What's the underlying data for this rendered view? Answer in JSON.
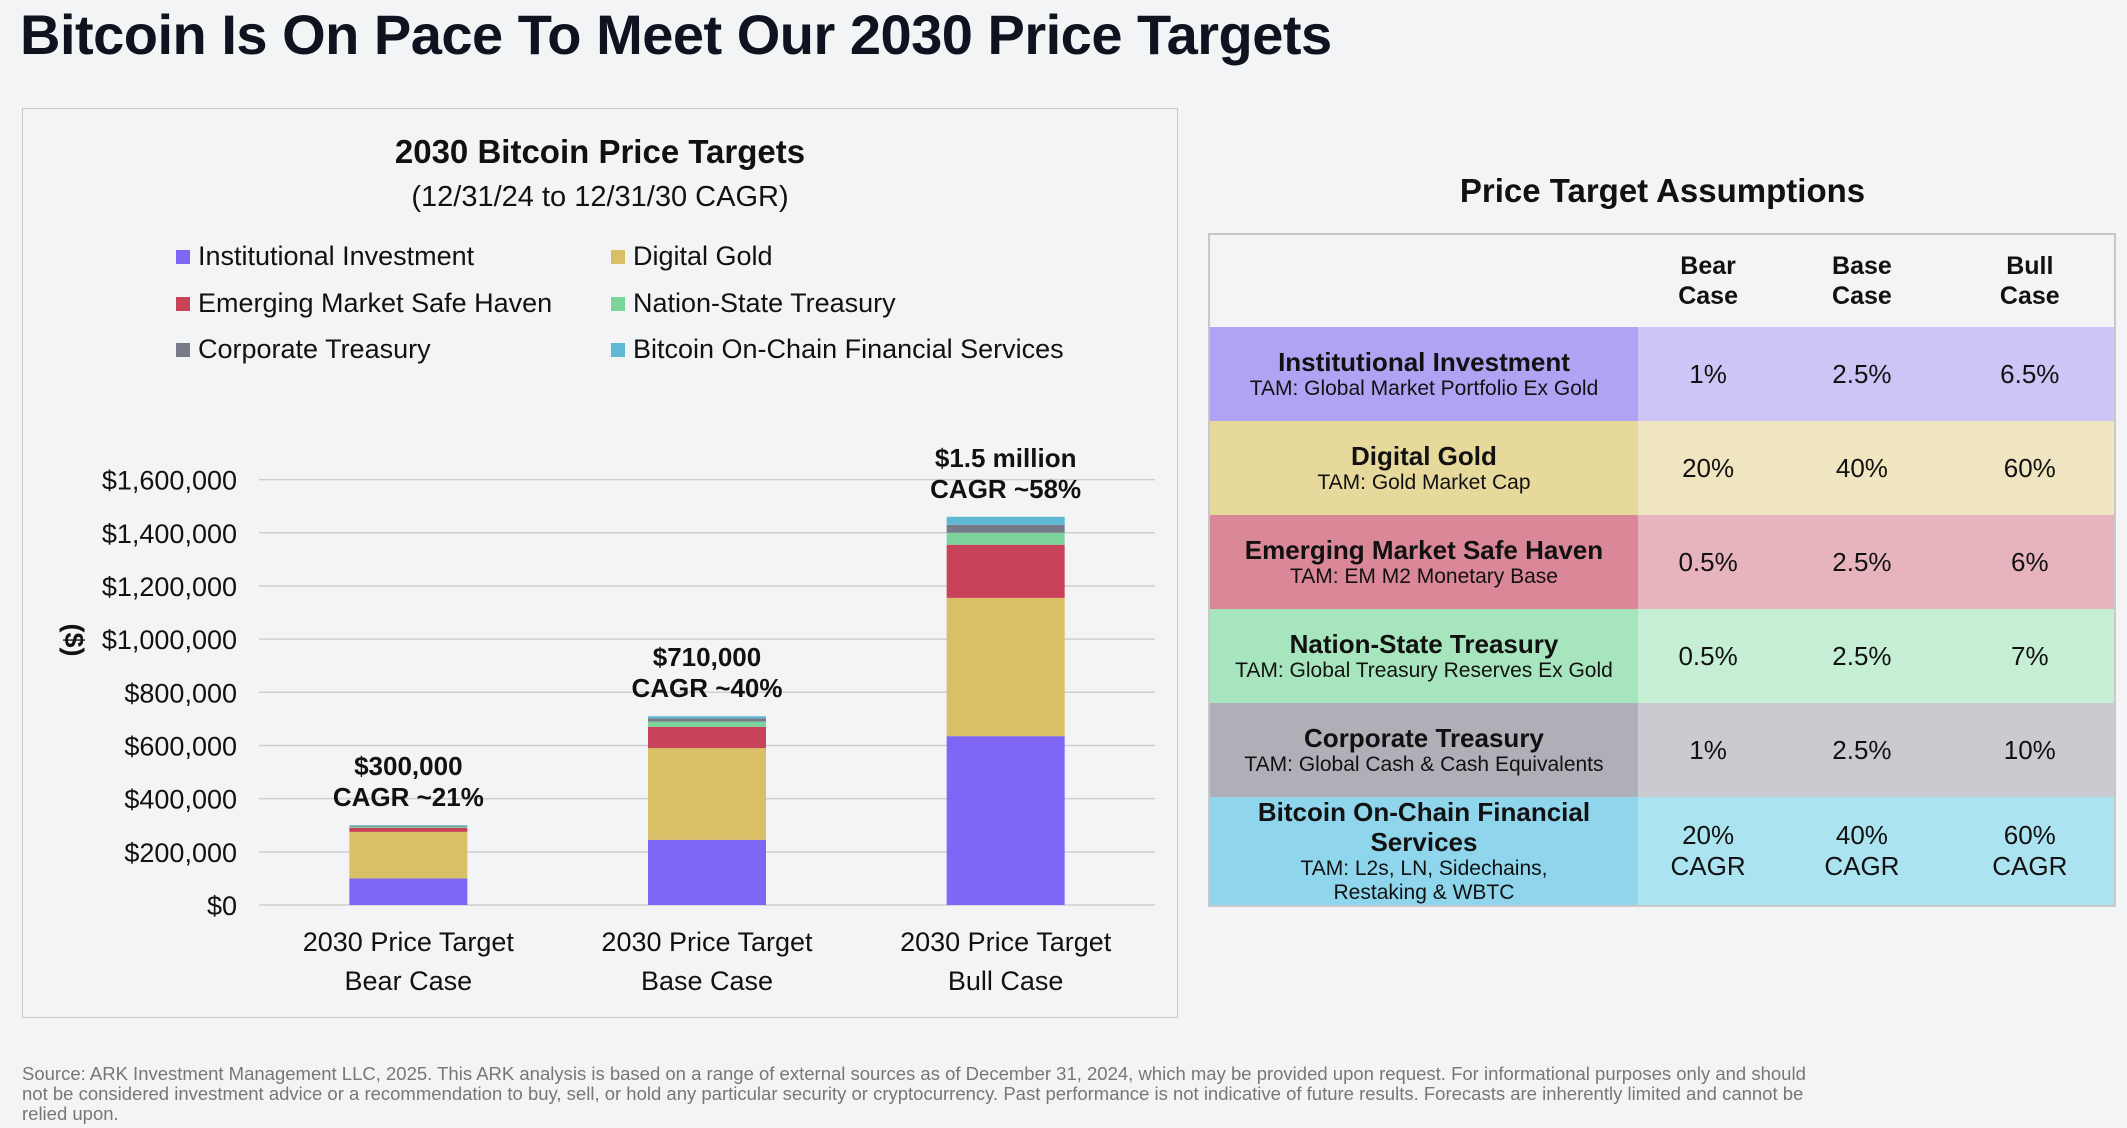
{
  "page_title": "Bitcoin Is On Pace To Meet Our 2030 Price Targets",
  "chart_data": {
    "type": "bar",
    "stacked": true,
    "title": "2030 Bitcoin Price Targets",
    "subtitle": "(12/31/24 to 12/31/30 CAGR)",
    "ylabel": "($)",
    "ylim": [
      0,
      1700000
    ],
    "yticks": [
      0,
      200000,
      400000,
      600000,
      800000,
      1000000,
      1200000,
      1400000,
      1600000
    ],
    "ytick_labels": [
      "$0",
      "$200,000",
      "$400,000",
      "$600,000",
      "$800,000",
      "$1,000,000",
      "$1,200,000",
      "$1,400,000",
      "$1,600,000"
    ],
    "grid": true,
    "legend_position": "top",
    "categories": [
      {
        "line1": "2030 Price Target",
        "line2": "Bear Case"
      },
      {
        "line1": "2030 Price Target",
        "line2": "Base Case"
      },
      {
        "line1": "2030 Price Target",
        "line2": "Bull Case"
      }
    ],
    "series": [
      {
        "name": "Institutional Investment",
        "color": "#8066f5",
        "values": [
          100000,
          245000,
          635000
        ]
      },
      {
        "name": "Digital Gold",
        "color": "#d9bf65",
        "values": [
          175000,
          345000,
          520000
        ]
      },
      {
        "name": "Emerging Market Safe Haven",
        "color": "#c8435a",
        "values": [
          15000,
          80000,
          200000
        ]
      },
      {
        "name": "Nation-State Treasury",
        "color": "#7cd39c",
        "values": [
          4000,
          20000,
          45000
        ]
      },
      {
        "name": "Corporate Treasury",
        "color": "#777b89",
        "values": [
          3000,
          12000,
          30000
        ]
      },
      {
        "name": "Bitcoin On-Chain Financial Services",
        "color": "#5fb9d5",
        "values": [
          3000,
          8000,
          30000
        ]
      }
    ],
    "annotations": [
      {
        "line1": "$300,000",
        "line2": "CAGR ~21%"
      },
      {
        "line1": "$710,000",
        "line2": "CAGR ~40%"
      },
      {
        "line1": "$1.5 million",
        "line2": "CAGR ~58%"
      }
    ]
  },
  "assumptions": {
    "title": "Price Target Assumptions",
    "headers": [
      {
        "line1": "Bear",
        "line2": "Case"
      },
      {
        "line1": "Base",
        "line2": "Case"
      },
      {
        "line1": "Bull",
        "line2": "Case"
      }
    ],
    "rows": [
      {
        "name": "Institutional Investment",
        "tam": "TAM: Global Market Portfolio Ex Gold",
        "tam2": "",
        "label_bg": "#b1a3f4",
        "bg": "#cdc5f6",
        "bear": "1%",
        "bear2": "",
        "base": "2.5%",
        "base2": "",
        "bull": "6.5%",
        "bull2": ""
      },
      {
        "name": "Digital Gold",
        "tam": "TAM: Gold Market Cap",
        "tam2": "",
        "label_bg": "#e7d89c",
        "bg": "#efe6c1",
        "bear": "20%",
        "bear2": "",
        "base": "40%",
        "base2": "",
        "bull": "60%",
        "bull2": ""
      },
      {
        "name": "Emerging Market Safe Haven",
        "tam": "TAM: EM M2 Monetary Base",
        "tam2": "",
        "label_bg": "#da8898",
        "bg": "#e7b4bd",
        "bear": "0.5%",
        "bear2": "",
        "base": "2.5%",
        "base2": "",
        "bull": "6%",
        "bull2": ""
      },
      {
        "name": "Nation-State Treasury",
        "tam": "TAM: Global Treasury Reserves Ex Gold",
        "tam2": "",
        "label_bg": "#a6e5bd",
        "bg": "#c6eed5",
        "bear": "0.5%",
        "bear2": "",
        "base": "2.5%",
        "base2": "",
        "bull": "7%",
        "bull2": ""
      },
      {
        "name": "Corporate Treasury",
        "tam": "TAM: Global Cash & Cash Equivalents",
        "tam2": "",
        "label_bg": "#aeafb7",
        "bg": "#cacbd0",
        "bear": "1%",
        "bear2": "",
        "base": "2.5%",
        "base2": "",
        "bull": "10%",
        "bull2": ""
      },
      {
        "name": "Bitcoin On-Chain Financial Services",
        "tam": "TAM: L2s, LN, Sidechains,",
        "tam2": "Restaking & WBTC",
        "label_bg": "#8fd6ed",
        "bg": "#ace3f1",
        "bear": "20%",
        "bear2": "CAGR",
        "base": "40%",
        "base2": "CAGR",
        "bull": "60%",
        "bull2": "CAGR"
      }
    ]
  },
  "source_note": "Source: ARK Investment Management LLC, 2025. This ARK analysis is based on a range of external sources as of December 31, 2024, which may be provided upon request. For informational purposes only and should not be considered investment advice or a recommendation to buy, sell, or hold any particular security or cryptocurrency. Past performance is not indicative of future results. Forecasts are inherently limited and cannot be relied upon."
}
